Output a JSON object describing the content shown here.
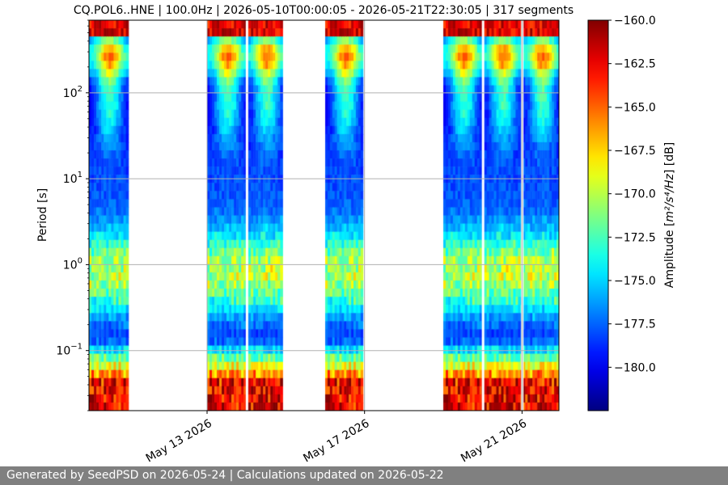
{
  "chart_data": {
    "type": "heatmap",
    "title": "CQ.POL6..HNE | 100.0Hz | 2026-05-10T00:00:05 - 2026-05-21T22:30:05 | 317 segments",
    "ylabel": "Period [s]",
    "y_scale": "log",
    "y_inverted": true,
    "ylim": [
      0.02,
      700
    ],
    "xlim": [
      "2026-05-10T00:00:05",
      "2026-05-21T22:30:05"
    ],
    "x_ticks": [
      {
        "date": "2026-05-13",
        "label": "May 13 2026"
      },
      {
        "date": "2026-05-17",
        "label": "May 17 2026"
      },
      {
        "date": "2026-05-21",
        "label": "May 21 2026"
      }
    ],
    "y_ticks": [
      {
        "value": 0.1,
        "base": "10",
        "exp": "−1"
      },
      {
        "value": 1,
        "base": "10",
        "exp": "0"
      },
      {
        "value": 10,
        "base": "10",
        "exp": "1"
      },
      {
        "value": 100,
        "base": "10",
        "exp": "2"
      }
    ],
    "grid": "horizontal",
    "colormap": "jet",
    "colorbar": {
      "label_prefix": "Amplitude [",
      "label_math": "m²/s⁴/Hz",
      "label_suffix": "] [dB]",
      "vmin": -182.5,
      "vmax": -160.0,
      "ticks": [
        {
          "value": -160.0,
          "label": "−160.0"
        },
        {
          "value": -162.5,
          "label": "−162.5"
        },
        {
          "value": -165.0,
          "label": "−165.0"
        },
        {
          "value": -167.5,
          "label": "−167.5"
        },
        {
          "value": -170.0,
          "label": "−170.0"
        },
        {
          "value": -172.5,
          "label": "−172.5"
        },
        {
          "value": -175.0,
          "label": "−175.0"
        },
        {
          "value": -177.5,
          "label": "−177.5"
        },
        {
          "value": -180.0,
          "label": "−180.0"
        }
      ]
    },
    "data_blocks": [
      {
        "start": "2026-05-10T00:00:05",
        "end": "2026-05-11T00:00:00"
      },
      {
        "start": "2026-05-13T00:00:00",
        "end": "2026-05-14T22:00:00"
      },
      {
        "start": "2026-05-16T00:00:00",
        "end": "2026-05-16T23:00:00"
      },
      {
        "start": "2026-05-19T00:00:00",
        "end": "2026-05-21T22:30:05"
      }
    ],
    "data_gaps": [
      "2026-05-14T00:05:00",
      "2026-05-17T00:10:00",
      "2026-05-20T00:00:00",
      "2026-05-20T23:55:00"
    ]
  },
  "footer": {
    "text": "Generated by SeedPSD on 2026-05-24 | Calculations updated on 2026-05-22"
  }
}
